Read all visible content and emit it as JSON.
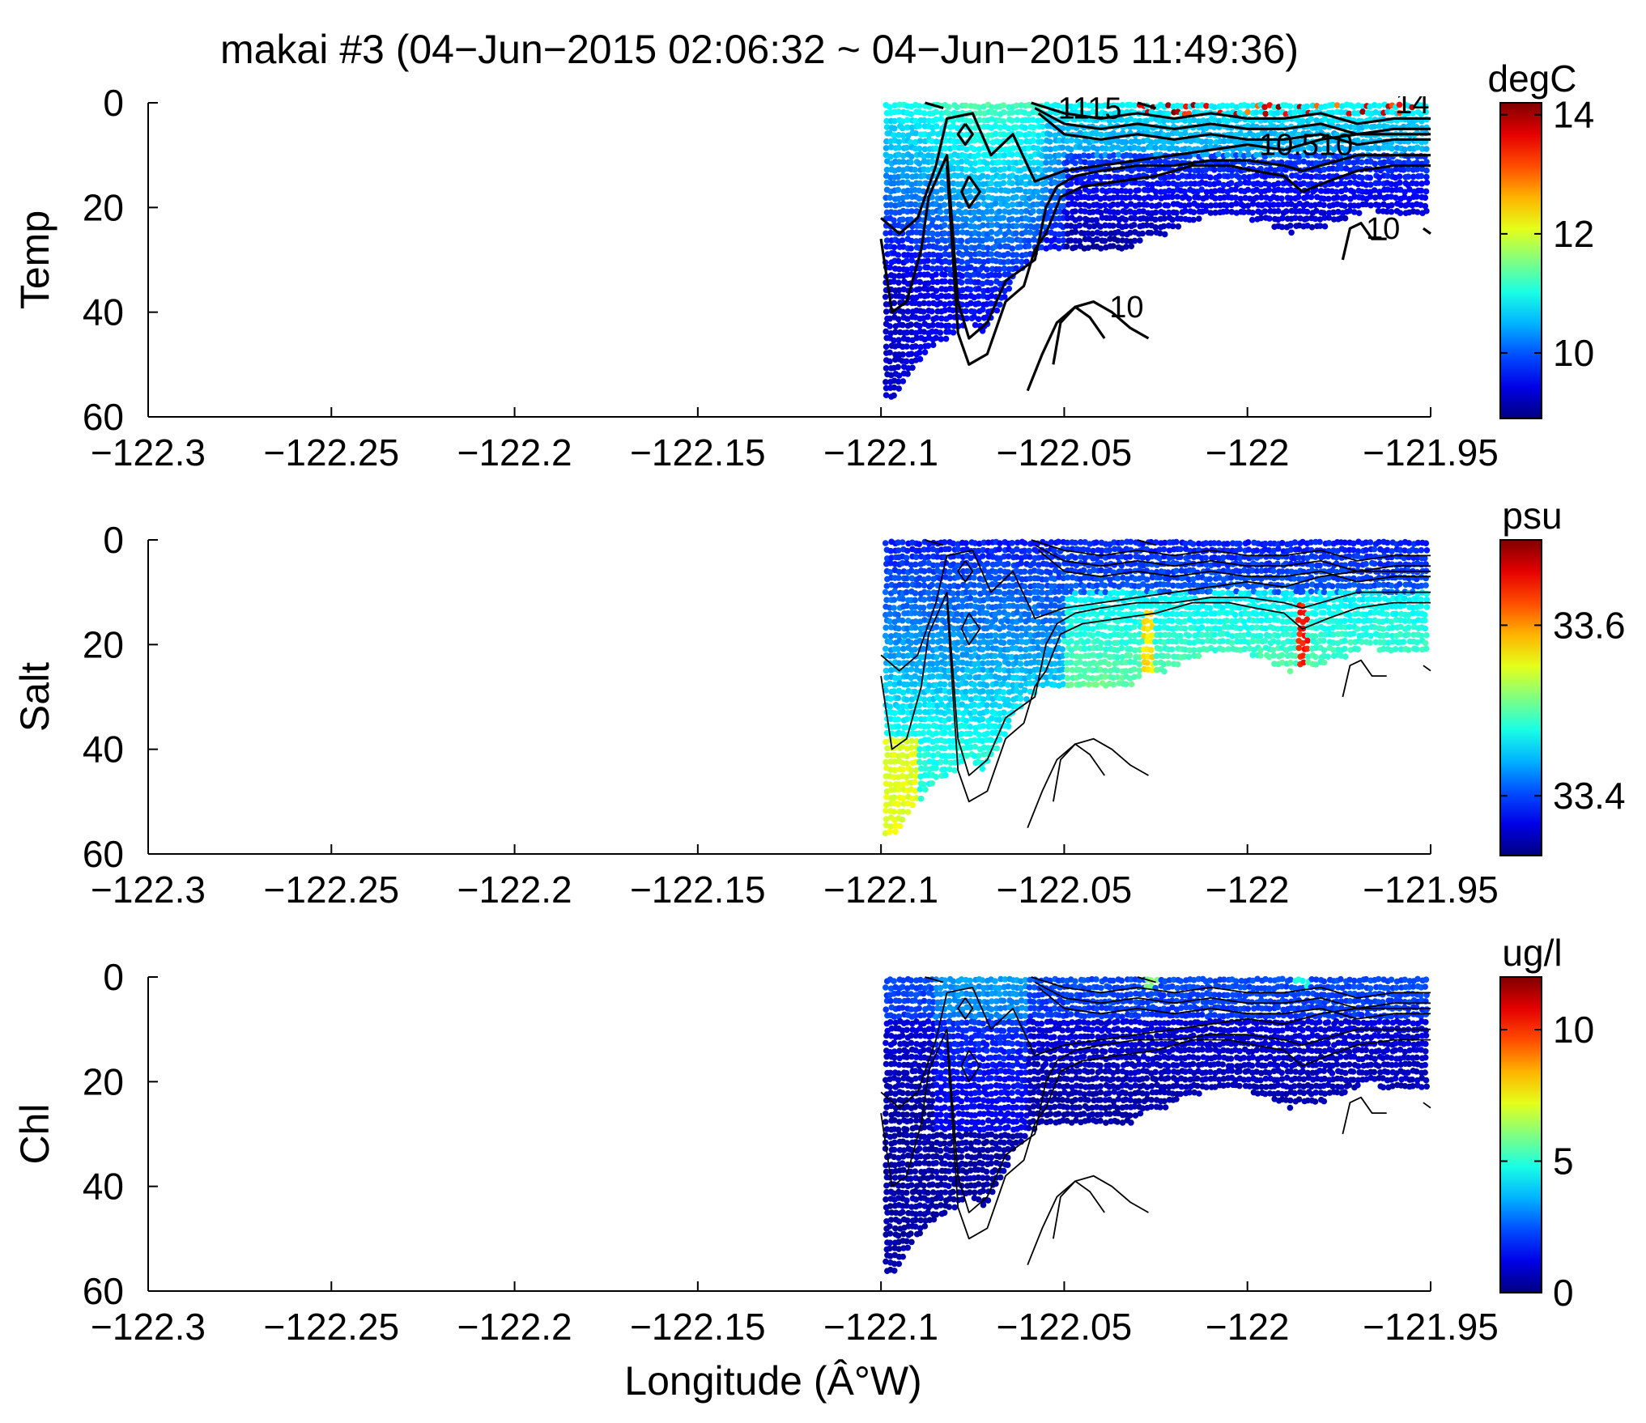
{
  "title": "makai #3 (04−Jun−2015 02:06:32 ~ 04−Jun−2015 11:49:36)",
  "colors": {
    "dot_palette": "jet",
    "axis": "#000000",
    "contour": "#000000"
  },
  "chart_data": [
    {
      "type": "scatter",
      "panel": "temp",
      "ylabel": "Temp",
      "xlabel": "",
      "xlim": [
        -122.3,
        -121.95
      ],
      "ylim": [
        0,
        60
      ],
      "y_reversed": true,
      "x_ticks": [
        "−122.3",
        "−122.25",
        "−122.2",
        "−122.15",
        "−122.1",
        "−122.05",
        "−122",
        "−121.95"
      ],
      "y_ticks": [
        "0",
        "20",
        "40",
        "60"
      ],
      "colorbar": {
        "unit": "degC",
        "range": [
          8.9,
          14.2
        ],
        "ticks": [
          {
            "v": 10,
            "label": "10"
          },
          {
            "v": 12,
            "label": "12"
          },
          {
            "v": 14,
            "label": "14"
          }
        ]
      },
      "contour_labels": [
        {
          "text": "10",
          "x": -121.963,
          "y": 26
        },
        {
          "text": "10",
          "x": -122.033,
          "y": 41
        },
        {
          "text": "10.510",
          "x": -121.984,
          "y": 10
        },
        {
          "text": "1115",
          "x": -122.043,
          "y": 3
        },
        {
          "text": "14",
          "x": -121.955,
          "y": 2
        }
      ]
    },
    {
      "type": "scatter",
      "panel": "salt",
      "ylabel": "Salt",
      "xlabel": "",
      "xlim": [
        -122.3,
        -121.95
      ],
      "ylim": [
        0,
        60
      ],
      "y_reversed": true,
      "x_ticks": [
        "−122.3",
        "−122.25",
        "−122.2",
        "−122.15",
        "−122.1",
        "−122.05",
        "−122",
        "−121.95"
      ],
      "y_ticks": [
        "0",
        "20",
        "40",
        "60"
      ],
      "colorbar": {
        "unit": "psu",
        "range": [
          33.33,
          33.7
        ],
        "ticks": [
          {
            "v": 33.4,
            "label": "33.4"
          },
          {
            "v": 33.6,
            "label": "33.6"
          }
        ]
      },
      "contour_labels": []
    },
    {
      "type": "scatter",
      "panel": "chl",
      "ylabel": "Chl",
      "xlabel": "Longitude (Â°W)",
      "xlim": [
        -122.3,
        -121.95
      ],
      "ylim": [
        0,
        60
      ],
      "y_reversed": true,
      "x_ticks": [
        "−122.3",
        "−122.25",
        "−122.2",
        "−122.15",
        "−122.1",
        "−122.05",
        "−122",
        "−121.95"
      ],
      "y_ticks": [
        "0",
        "20",
        "40",
        "60"
      ],
      "colorbar": {
        "unit": "ug/l",
        "range": [
          0,
          12
        ],
        "ticks": [
          {
            "v": 0,
            "label": "0"
          },
          {
            "v": 5,
            "label": "5"
          },
          {
            "v": 10,
            "label": "10"
          }
        ]
      },
      "contour_labels": []
    }
  ],
  "section": {
    "bottom_depth": [
      [
        -122.1,
        58
      ],
      [
        -122.096,
        56
      ],
      [
        -122.092,
        52
      ],
      [
        -122.088,
        48
      ],
      [
        -122.084,
        46
      ],
      [
        -122.08,
        44
      ],
      [
        -122.076,
        42
      ],
      [
        -122.072,
        44
      ],
      [
        -122.068,
        40
      ],
      [
        -122.064,
        34
      ],
      [
        -122.06,
        30
      ],
      [
        -122.056,
        28
      ],
      [
        -122.052,
        28
      ],
      [
        -122.048,
        28
      ],
      [
        -122.044,
        28
      ],
      [
        -122.04,
        28
      ],
      [
        -122.036,
        29
      ],
      [
        -122.032,
        28
      ],
      [
        -122.028,
        26
      ],
      [
        -122.024,
        26
      ],
      [
        -122.02,
        24
      ],
      [
        -122.016,
        23
      ],
      [
        -122.012,
        22
      ],
      [
        -122.008,
        22
      ],
      [
        -122.004,
        21
      ],
      [
        -122.0,
        22
      ],
      [
        -121.996,
        23
      ],
      [
        -121.992,
        24
      ],
      [
        -121.988,
        25
      ],
      [
        -121.984,
        24
      ],
      [
        -121.98,
        24
      ],
      [
        -121.976,
        23
      ],
      [
        -121.972,
        22
      ],
      [
        -121.968,
        20
      ],
      [
        -121.964,
        21
      ],
      [
        -121.96,
        22
      ],
      [
        -121.956,
        22
      ],
      [
        -121.952,
        21
      ],
      [
        -121.95,
        21
      ]
    ],
    "contours": [
      [
        [
          -122.1,
          22
        ],
        [
          -122.095,
          25
        ],
        [
          -122.09,
          22
        ],
        [
          -122.085,
          12
        ],
        [
          -122.082,
          3
        ],
        [
          -122.075,
          2
        ],
        [
          -122.07,
          10
        ],
        [
          -122.064,
          6
        ],
        [
          -122.058,
          15
        ],
        [
          -122.05,
          13
        ],
        [
          -122.04,
          12
        ],
        [
          -122.03,
          11
        ],
        [
          -122.02,
          10
        ],
        [
          -122.01,
          9
        ],
        [
          -122.0,
          8
        ],
        [
          -121.99,
          9
        ],
        [
          -121.98,
          7
        ],
        [
          -121.97,
          6
        ],
        [
          -121.96,
          6
        ],
        [
          -121.95,
          6
        ]
      ],
      [
        [
          -122.1,
          26
        ],
        [
          -122.097,
          40
        ],
        [
          -122.093,
          38
        ],
        [
          -122.089,
          28
        ],
        [
          -122.087,
          18
        ],
        [
          -122.082,
          10
        ],
        [
          -122.079,
          38
        ],
        [
          -122.076,
          45
        ],
        [
          -122.071,
          42
        ],
        [
          -122.066,
          34
        ],
        [
          -122.062,
          32
        ],
        [
          -122.058,
          30
        ],
        [
          -122.055,
          20
        ],
        [
          -122.052,
          16
        ],
        [
          -122.047,
          14
        ],
        [
          -122.04,
          13
        ],
        [
          -122.03,
          12
        ],
        [
          -122.02,
          12
        ],
        [
          -122.01,
          11
        ],
        [
          -122.0,
          11
        ],
        [
          -121.99,
          12
        ],
        [
          -121.985,
          13
        ],
        [
          -121.98,
          12
        ],
        [
          -121.97,
          10
        ],
        [
          -121.96,
          10
        ],
        [
          -121.95,
          10
        ]
      ],
      [
        [
          -122.082,
          12
        ],
        [
          -122.079,
          44
        ],
        [
          -122.076,
          50
        ],
        [
          -122.071,
          48
        ],
        [
          -122.066,
          38
        ],
        [
          -122.061,
          35
        ],
        [
          -122.058,
          28
        ],
        [
          -122.055,
          25
        ],
        [
          -122.051,
          18
        ],
        [
          -122.045,
          16
        ],
        [
          -122.035,
          15
        ],
        [
          -122.025,
          14
        ],
        [
          -122.015,
          12
        ],
        [
          -122.005,
          12
        ],
        [
          -121.998,
          13
        ],
        [
          -121.99,
          14
        ],
        [
          -121.985,
          17
        ],
        [
          -121.978,
          15
        ],
        [
          -121.97,
          13
        ],
        [
          -121.96,
          12
        ],
        [
          -121.95,
          12
        ]
      ],
      [
        [
          -122.06,
          55
        ],
        [
          -122.056,
          48
        ],
        [
          -122.052,
          42
        ],
        [
          -122.047,
          39
        ],
        [
          -122.042,
          38
        ],
        [
          -122.037,
          40
        ],
        [
          -122.032,
          43
        ],
        [
          -122.027,
          45
        ]
      ],
      [
        [
          -122.053,
          50
        ],
        [
          -122.051,
          42
        ],
        [
          -122.047,
          39
        ],
        [
          -122.043,
          41
        ],
        [
          -122.039,
          45
        ]
      ],
      [
        [
          -121.974,
          30
        ],
        [
          -121.972,
          24
        ],
        [
          -121.969,
          23
        ],
        [
          -121.966,
          26
        ],
        [
          -121.962,
          26
        ]
      ],
      [
        [
          -121.95,
          25
        ],
        [
          -121.952,
          24
        ]
      ],
      [
        [
          -122.059,
          0
        ],
        [
          -122.05,
          2
        ],
        [
          -122.04,
          3
        ],
        [
          -122.03,
          2
        ],
        [
          -122.02,
          3
        ],
        [
          -122.01,
          2
        ],
        [
          -122.0,
          3
        ],
        [
          -121.99,
          3
        ],
        [
          -121.98,
          2
        ],
        [
          -121.97,
          4
        ],
        [
          -121.96,
          3
        ],
        [
          -121.95,
          3
        ]
      ],
      [
        [
          -122.058,
          1
        ],
        [
          -122.05,
          4
        ],
        [
          -122.04,
          5
        ],
        [
          -122.03,
          4
        ],
        [
          -122.02,
          5
        ],
        [
          -122.01,
          4
        ],
        [
          -122.0,
          5
        ],
        [
          -121.99,
          5
        ],
        [
          -121.98,
          4
        ],
        [
          -121.97,
          6
        ],
        [
          -121.96,
          5
        ],
        [
          -121.95,
          5
        ]
      ],
      [
        [
          -122.057,
          2
        ],
        [
          -122.05,
          6
        ],
        [
          -122.04,
          7
        ],
        [
          -122.03,
          6
        ],
        [
          -122.02,
          7
        ],
        [
          -122.01,
          6
        ],
        [
          -122.0,
          7
        ],
        [
          -121.99,
          7
        ],
        [
          -121.98,
          6
        ],
        [
          -121.97,
          8
        ],
        [
          -121.96,
          7
        ],
        [
          -121.95,
          7
        ]
      ],
      [
        [
          -122.077,
          4
        ],
        [
          -122.075,
          6
        ],
        [
          -122.077,
          8
        ],
        [
          -122.079,
          6
        ],
        [
          -122.077,
          4
        ]
      ],
      [
        [
          -122.076,
          14
        ],
        [
          -122.073,
          17
        ],
        [
          -122.076,
          20
        ],
        [
          -122.078,
          17
        ],
        [
          -122.076,
          14
        ]
      ],
      [
        [
          -122.088,
          0
        ],
        [
          -122.083,
          1
        ]
      ],
      [
        [
          -122.03,
          0
        ],
        [
          -122.025,
          1
        ]
      ]
    ]
  }
}
